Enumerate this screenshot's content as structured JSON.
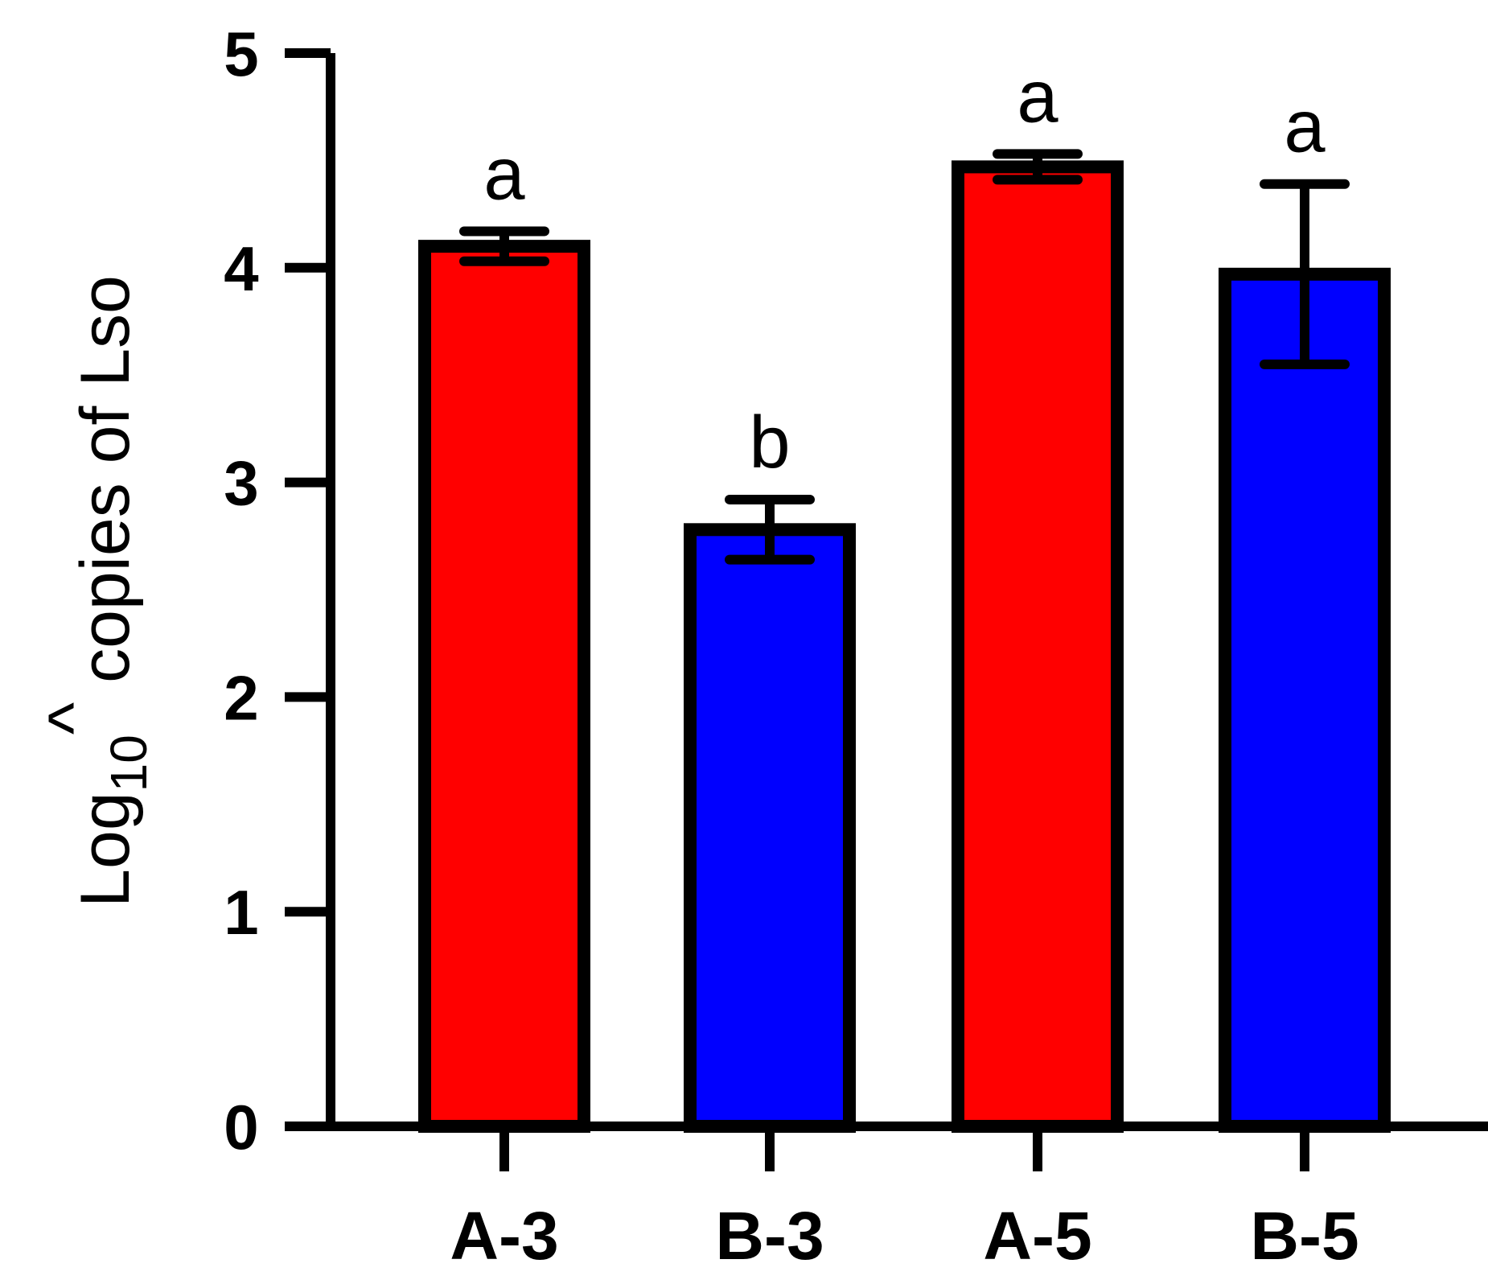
{
  "chart_data": {
    "type": "bar",
    "categories": [
      "A-3",
      "B-3",
      "A-5",
      "B-5"
    ],
    "values": [
      4.1,
      2.78,
      4.47,
      3.97
    ],
    "errors": [
      0.07,
      0.14,
      0.06,
      0.42
    ],
    "significance_labels": [
      "a",
      "b",
      "a",
      "a"
    ],
    "bar_colors": [
      "#ff0000",
      "#0000ff",
      "#ff0000",
      "#0000ff"
    ],
    "edge_color": "#000000",
    "title": "",
    "xlabel": "",
    "ylabel": {
      "base": "Log",
      "subscript": "10",
      "superscript": "^",
      "rest": " copies of Lso"
    },
    "ylim": [
      0,
      5
    ],
    "yticks": [
      "0",
      "1",
      "2",
      "3",
      "4",
      "5"
    ],
    "grid": false,
    "legend": "none"
  }
}
